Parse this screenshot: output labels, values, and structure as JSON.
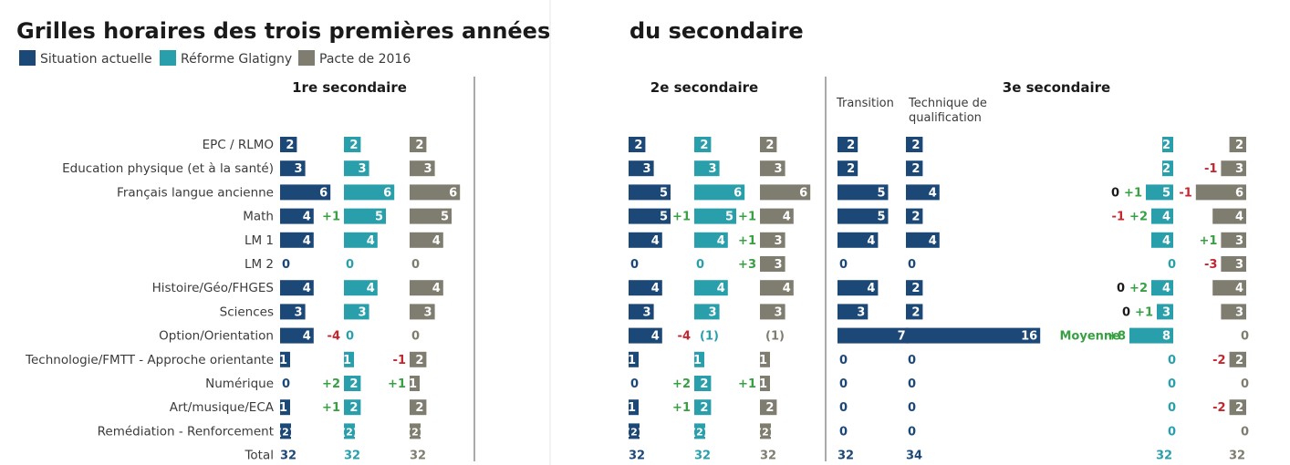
{
  "title_left": "Grilles horaires des trois premières années",
  "title_right": "du secondaire",
  "colors": {
    "actuel": "#1c4878",
    "glatigny": "#2a9fac",
    "pacte": "#7f7d6f",
    "plus": "#38a043",
    "minus": "#c4262e",
    "text": "#3b3b3b",
    "rule": "#555555"
  },
  "legend": [
    {
      "label": "Situation actuelle",
      "color": "#1c4878"
    },
    {
      "label": "Réforme Glatigny",
      "color": "#2a9fac"
    },
    {
      "label": "Pacte de 2016",
      "color": "#7f7d6f"
    }
  ],
  "groups": {
    "s1": "1re secondaire",
    "s2": "2e secondaire",
    "s3": "3e secondaire",
    "transition": "Transition",
    "technique": [
      "Technique de",
      "qualification"
    ]
  },
  "chart_data": {
    "type": "bar",
    "title": "Grilles horaires des trois premières années du secondaire",
    "categories": [
      "EPC / RLMO",
      "Education physique (et à la santé)",
      "Français langue ancienne",
      "Math",
      "LM 1",
      "LM 2",
      "Histoire/Géo/FHGES",
      "Sciences",
      "Option/Orientation",
      "Technologie/FMTT - Approche orientante",
      "Numérique",
      "Art/musique/ECA",
      "Remédiation - Renforcement"
    ],
    "total_label": "Total",
    "moyenne_label": "Moyenne",
    "series": [
      {
        "name": "1re - Situation actuelle",
        "group": "s1",
        "color": "actuel",
        "values": [
          "2",
          "3",
          "6",
          "4",
          "4",
          "0",
          "4",
          "3",
          "4",
          "1",
          "0",
          "1",
          "(2)"
        ],
        "deltas": [
          null,
          null,
          null,
          null,
          null,
          null,
          null,
          null,
          null,
          null,
          null,
          null,
          null
        ],
        "total": "32"
      },
      {
        "name": "1re - Réforme Glatigny",
        "group": "s1",
        "color": "glatigny",
        "values": [
          "2",
          "3",
          "6",
          "5",
          "4",
          "0",
          "4",
          "3",
          "0",
          "1",
          "2",
          "2",
          "(2)"
        ],
        "deltas": [
          null,
          null,
          null,
          "+1",
          null,
          null,
          null,
          null,
          "-4",
          null,
          "+2",
          "+1",
          null
        ],
        "total": "32"
      },
      {
        "name": "1re - Pacte de 2016",
        "group": "s1",
        "color": "pacte",
        "values": [
          "2",
          "3",
          "6",
          "5",
          "4",
          "0",
          "4",
          "3",
          "0",
          "2",
          "1",
          "2",
          "(2)"
        ],
        "deltas": [
          null,
          null,
          null,
          null,
          null,
          null,
          null,
          null,
          null,
          "-1",
          "+1",
          null,
          null
        ],
        "total": "32"
      },
      {
        "name": "2e - Situation actuelle",
        "group": "s2",
        "color": "actuel",
        "values": [
          "2",
          "3",
          "5",
          "5",
          "4",
          "0",
          "4",
          "3",
          "4",
          "1",
          "0",
          "1",
          "(2)"
        ],
        "deltas": [
          null,
          null,
          null,
          null,
          null,
          null,
          null,
          null,
          null,
          null,
          null,
          null,
          null
        ],
        "total": "32"
      },
      {
        "name": "2e - Réforme Glatigny",
        "group": "s2",
        "color": "glatigny",
        "values": [
          "2",
          "3",
          "6",
          "5",
          "4",
          "0",
          "4",
          "3",
          "(1)",
          "1",
          "2",
          "2",
          "(2)"
        ],
        "deltas": [
          null,
          null,
          null,
          "+1",
          null,
          null,
          null,
          null,
          "-4",
          null,
          "+2",
          "+1",
          null
        ],
        "total": "32"
      },
      {
        "name": "2e - Pacte de 2016",
        "group": "s2",
        "color": "pacte",
        "values": [
          "2",
          "3",
          "6",
          "4",
          "3",
          "3",
          "4",
          "3",
          "(1)",
          "1",
          "1",
          "2",
          "(2)"
        ],
        "deltas": [
          null,
          null,
          null,
          "+1",
          "+1",
          "+3",
          null,
          null,
          null,
          null,
          "+1",
          null,
          null
        ],
        "total": "32"
      },
      {
        "name": "3e - Transition",
        "group": "s3",
        "color": "actuel",
        "values": [
          "2",
          "2",
          "5",
          "5",
          "4",
          "0",
          "4",
          "3",
          "7",
          "0",
          "0",
          "0",
          "0"
        ],
        "deltas": [
          null,
          null,
          null,
          null,
          null,
          null,
          null,
          null,
          null,
          null,
          null,
          null,
          null
        ],
        "total": "32"
      },
      {
        "name": "3e - Technique de qualification",
        "group": "s3",
        "color": "actuel",
        "values": [
          "2",
          "2",
          "4",
          "2",
          "4",
          "0",
          "2",
          "2",
          "16",
          "0",
          "0",
          "0",
          "0"
        ],
        "deltas": [
          null,
          null,
          null,
          null,
          null,
          null,
          null,
          null,
          null,
          null,
          null,
          null,
          null
        ],
        "total": "34"
      },
      {
        "name": "3e - Réforme Glatigny",
        "group": "s3",
        "color": "glatigny",
        "values": [
          "2",
          "2",
          "5",
          "4",
          "4",
          "0",
          "4",
          "3",
          "8",
          "0",
          "0",
          "0",
          "0"
        ],
        "deltas": [
          null,
          null,
          "+1",
          "+2",
          null,
          null,
          "+2",
          "+1",
          "+8",
          null,
          null,
          null,
          null
        ],
        "prefix": [
          null,
          null,
          "0",
          "-1",
          null,
          null,
          "0",
          "0",
          null,
          null,
          null,
          null,
          null
        ],
        "total": "32"
      },
      {
        "name": "3e - Pacte de 2016",
        "group": "s3",
        "color": "pacte",
        "values": [
          "2",
          "3",
          "6",
          "4",
          "3",
          "3",
          "4",
          "3",
          "0",
          "2",
          "0",
          "2",
          "0"
        ],
        "deltas": [
          null,
          "-1",
          "-1",
          null,
          "+1",
          "-3",
          null,
          null,
          null,
          "-2",
          null,
          "-2",
          null
        ],
        "total": "32"
      }
    ]
  }
}
